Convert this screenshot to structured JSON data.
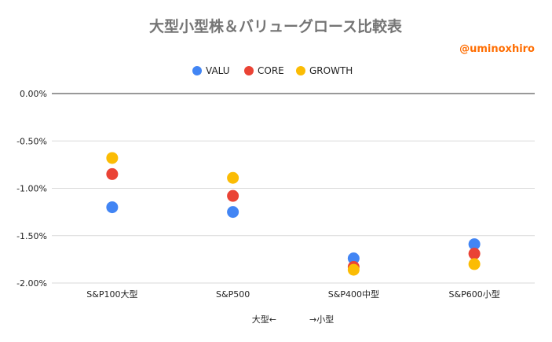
{
  "chart_data": {
    "type": "scatter",
    "title": "大型小型株＆バリューグロース比較表",
    "credit": "@uminoxhiro",
    "xlabel": "大型←            →小型",
    "categories": [
      "S&P100大型",
      "S&P500",
      "S&P400中型",
      "S&P600小型"
    ],
    "ylim": [
      -2.0,
      0.0
    ],
    "yticks": [
      "0.00%",
      "-0.50%",
      "-1.00%",
      "-1.50%",
      "-2.00%"
    ],
    "ytick_values": [
      0.0,
      -0.5,
      -1.0,
      -1.5,
      -2.0
    ],
    "grid": true,
    "legend_position": "top",
    "series": [
      {
        "name": "VALU",
        "color": "#4285f4",
        "values": [
          -1.2,
          -1.25,
          -1.74,
          -1.59
        ]
      },
      {
        "name": "CORE",
        "color": "#ea4335",
        "values": [
          -0.85,
          -1.08,
          -1.83,
          -1.69
        ]
      },
      {
        "name": "GROWTH",
        "color": "#fbbc04",
        "values": [
          -0.68,
          -0.89,
          -1.86,
          -1.8
        ]
      }
    ]
  }
}
